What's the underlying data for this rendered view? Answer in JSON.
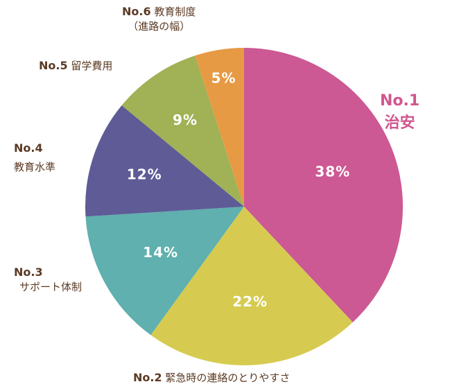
{
  "chart_data": {
    "type": "pie",
    "slices": [
      {
        "rank": "No.1",
        "label": "治安",
        "value": 38,
        "value_label": "38%",
        "color": "#cc5993"
      },
      {
        "rank": "No.2",
        "label": "緊急時の連絡のとりやすさ",
        "value": 22,
        "value_label": "22%",
        "color": "#d6cb50"
      },
      {
        "rank": "No.3",
        "label": "サポート体制",
        "value": 14,
        "value_label": "14%",
        "color": "#5fb0ae"
      },
      {
        "rank": "No.4",
        "label": "教育水準",
        "value": 12,
        "value_label": "12%",
        "color": "#5e5b97"
      },
      {
        "rank": "No.5",
        "label": "留学費用",
        "value": 9,
        "value_label": "9%",
        "color": "#a1b156"
      },
      {
        "rank": "No.6",
        "label": "教育制度",
        "label2": "（進路の幅）",
        "value": 5,
        "value_label": "5%",
        "color": "#e69a43"
      }
    ]
  }
}
